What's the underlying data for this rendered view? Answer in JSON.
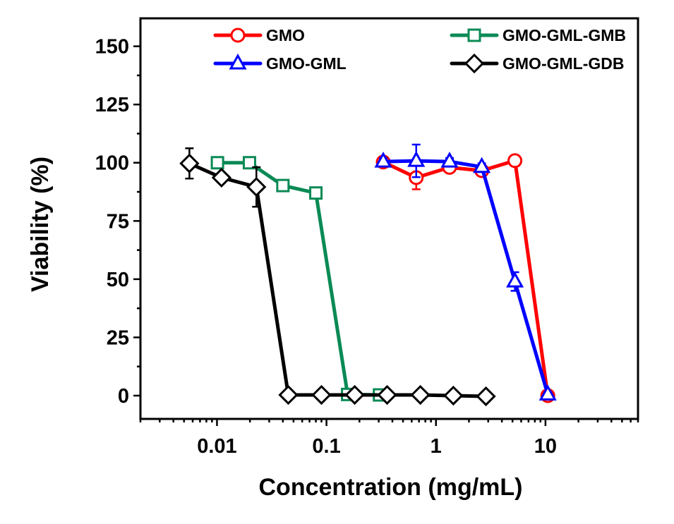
{
  "chart_data": {
    "type": "line",
    "title": "",
    "xlabel": "Concentration (mg/mL)",
    "ylabel": "Viability (%)",
    "xscale": "log",
    "xlim": [
      0.002,
      70
    ],
    "ylim": [
      -10,
      162
    ],
    "xticks": [
      0.01,
      0.1,
      1,
      10
    ],
    "xtick_labels": [
      "0.01",
      "0.1",
      "1",
      "10"
    ],
    "yticks": [
      0,
      25,
      50,
      75,
      100,
      125,
      150
    ],
    "ytick_labels": [
      "0",
      "25",
      "50",
      "75",
      "100",
      "125",
      "150"
    ],
    "grid": false,
    "legend_position": "top",
    "series": [
      {
        "name": "GMO",
        "color": "#ff0000",
        "marker": "circle",
        "x": [
          0.33,
          0.66,
          1.33,
          2.62,
          5.26,
          10.5
        ],
        "y": [
          100.3,
          93.6,
          98.0,
          96.6,
          100.9,
          0
        ],
        "err": [
          1.5,
          5,
          1.5,
          1.5,
          1,
          1
        ]
      },
      {
        "name": "GMO-GML",
        "color": "#0000ff",
        "marker": "triangle",
        "x": [
          0.33,
          0.66,
          1.33,
          2.62,
          5.26,
          10.5
        ],
        "y": [
          100.5,
          100.8,
          100.5,
          98.2,
          49,
          0.5
        ],
        "err": [
          1.5,
          7,
          1.5,
          1.5,
          4,
          1
        ]
      },
      {
        "name": "GMO-GML-GMB",
        "color": "#0a8a55",
        "marker": "square",
        "x": [
          0.0101,
          0.0198,
          0.04,
          0.08,
          0.156,
          0.305
        ],
        "y": [
          100,
          100,
          90.2,
          87,
          0.5,
          0.3
        ],
        "err": [
          1,
          1,
          0.5,
          0.5,
          0.5,
          0.5
        ]
      },
      {
        "name": "GMO-GML-GDB",
        "color": "#000000",
        "marker": "diamond",
        "x": [
          0.0056,
          0.011,
          0.0229,
          0.0448,
          0.09,
          0.181,
          0.358,
          0.72,
          1.44,
          2.86
        ],
        "y": [
          99.7,
          93.6,
          89.6,
          0.3,
          0.3,
          0.3,
          0.3,
          0.3,
          0,
          -0.3
        ],
        "err": [
          6.5,
          1.5,
          8.5,
          1,
          1,
          1,
          1,
          1,
          1,
          1
        ]
      }
    ]
  }
}
